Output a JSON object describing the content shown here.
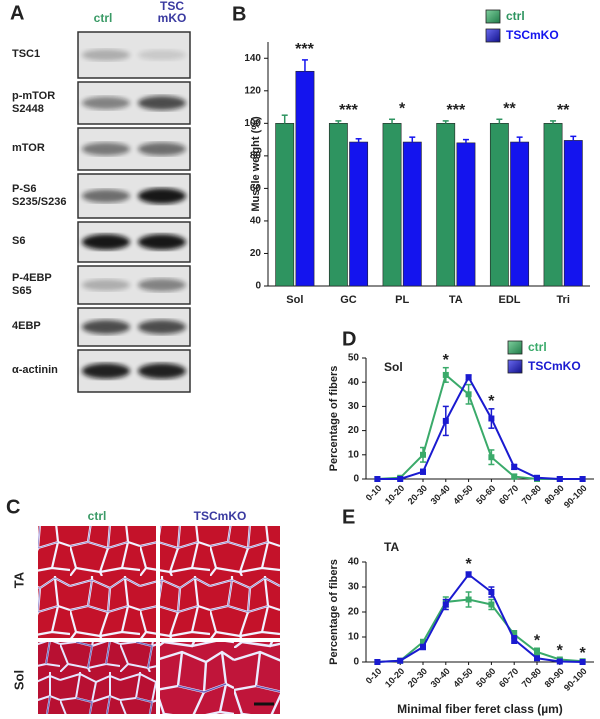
{
  "blots": {
    "panel_label": "A",
    "columns": [
      "ctrl",
      "TSC mKO"
    ],
    "rows": [
      "TSC1",
      "p-mTOR S2448",
      "mTOR",
      "P-S6 S235/S236",
      "S6",
      "P-4EBP S65",
      "4EBP",
      "α-actinin"
    ]
  },
  "histology": {
    "panel_label": "C",
    "columns": [
      "ctrl",
      "TSCmKO"
    ],
    "rows": [
      "TA",
      "Sol"
    ]
  },
  "chart_data": [
    {
      "type": "bar",
      "panel_label": "B",
      "y_label": "Muscle weight (%)",
      "categories": [
        "Sol",
        "GC",
        "PL",
        "TA",
        "EDL",
        "Tri"
      ],
      "series": [
        {
          "name": "ctrl",
          "color": "#2e9460",
          "values": [
            100,
            100,
            100,
            100,
            100,
            100
          ],
          "errors": [
            5,
            1.5,
            2.5,
            1.5,
            2.5,
            1.5
          ]
        },
        {
          "name": "TSCmKO",
          "color": "#1414ee",
          "values": [
            132,
            88.5,
            88.5,
            88,
            88.5,
            89.5
          ],
          "errors": [
            7,
            2,
            3,
            2,
            3,
            2.5
          ]
        }
      ],
      "annotations": [
        "***",
        "***",
        "*",
        "***",
        "**",
        "**"
      ],
      "ylim": [
        0,
        150
      ],
      "yticks": [
        0,
        20,
        40,
        60,
        80,
        100,
        120,
        140
      ],
      "legend": "upper right"
    },
    {
      "type": "line",
      "panel_label": "D",
      "inset_label": "Sol",
      "y_label": "Percentage of fibers",
      "categories": [
        "0-10",
        "10-20",
        "20-30",
        "30-40",
        "40-50",
        "50-60",
        "60-70",
        "70-80",
        "80-90",
        "90-100"
      ],
      "series": [
        {
          "name": "ctrl",
          "color": "#3aaa6a",
          "values": [
            0,
            0.5,
            10,
            43,
            35,
            9,
            1,
            0,
            0,
            0
          ],
          "errors": [
            0,
            0,
            3,
            3,
            4,
            3,
            1,
            0,
            0,
            0
          ]
        },
        {
          "name": "TSCmKO",
          "color": "#1a1ad0",
          "values": [
            0,
            0,
            3,
            24,
            42,
            25,
            5,
            0.5,
            0,
            0
          ],
          "errors": [
            0,
            0,
            1,
            6,
            1,
            4,
            1,
            0,
            0,
            0
          ]
        }
      ],
      "annotations": [
        null,
        null,
        null,
        "*",
        null,
        "*",
        null,
        null,
        null,
        null
      ],
      "ylim": [
        0,
        50
      ],
      "yticks": [
        0,
        10,
        20,
        30,
        40,
        50
      ],
      "legend": "upper right"
    },
    {
      "type": "line",
      "panel_label": "E",
      "inset_label": "TA",
      "y_label": "Percentage of fibers",
      "x_label": "Minimal fiber feret class (µm)",
      "categories": [
        "0-10",
        "10-20",
        "20-30",
        "30-40",
        "40-50",
        "50-60",
        "60-70",
        "70-80",
        "80-90",
        "90-100"
      ],
      "series": [
        {
          "name": "ctrl",
          "color": "#3aaa6a",
          "values": [
            0,
            0.5,
            8,
            24,
            25,
            23,
            11,
            4,
            1,
            0.3
          ],
          "errors": [
            0,
            0,
            1,
            2,
            3,
            2,
            1.5,
            1.5,
            0.5,
            0.2
          ]
        },
        {
          "name": "TSCmKO",
          "color": "#1a1ad0",
          "values": [
            0,
            0.5,
            6,
            23,
            35,
            28,
            9,
            1.5,
            0.2,
            0
          ],
          "errors": [
            0,
            0,
            1,
            2,
            1,
            2,
            1.5,
            0.5,
            0.2,
            0
          ]
        }
      ],
      "annotations": [
        null,
        null,
        null,
        null,
        "*",
        null,
        null,
        "*",
        "*",
        "*"
      ],
      "ylim": [
        0,
        40
      ],
      "yticks": [
        0,
        10,
        20,
        30,
        40
      ]
    }
  ]
}
